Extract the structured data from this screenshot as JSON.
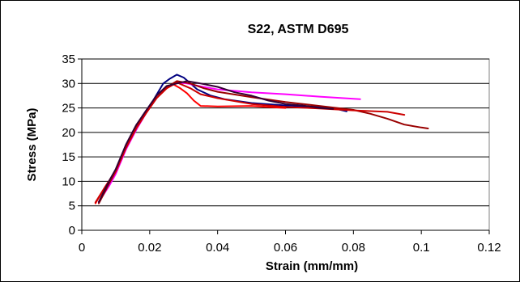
{
  "chart_data": {
    "type": "line",
    "title": "S22, ASTM D695",
    "xlabel": "Strain (mm/mm)",
    "ylabel": "Stress (MPa)",
    "xlim": [
      0,
      0.12
    ],
    "ylim": [
      0,
      35
    ],
    "x_ticks": [
      "0",
      "0.02",
      "0.04",
      "0.06",
      "0.08",
      "0.1",
      "0.12"
    ],
    "y_ticks": [
      "0",
      "5",
      "10",
      "15",
      "20",
      "25",
      "30",
      "35"
    ],
    "grid": "horizontal",
    "legend": "none",
    "series": [
      {
        "color": "#000080",
        "points": [
          [
            0.005,
            5.6
          ],
          [
            0.008,
            9.5
          ],
          [
            0.01,
            12.0
          ],
          [
            0.013,
            17.0
          ],
          [
            0.016,
            20.5
          ],
          [
            0.018,
            23.5
          ],
          [
            0.021,
            26.5
          ],
          [
            0.024,
            30.0
          ],
          [
            0.026,
            31.0
          ],
          [
            0.028,
            31.8
          ],
          [
            0.03,
            31.2
          ],
          [
            0.034,
            28.8
          ],
          [
            0.038,
            27.5
          ],
          [
            0.042,
            26.8
          ],
          [
            0.05,
            26.0
          ],
          [
            0.06,
            25.5
          ],
          [
            0.07,
            25.2
          ],
          [
            0.075,
            24.8
          ],
          [
            0.078,
            24.3
          ]
        ]
      },
      {
        "color": "#ff0000",
        "points": [
          [
            0.004,
            5.5
          ],
          [
            0.007,
            9.0
          ],
          [
            0.01,
            12.2
          ],
          [
            0.013,
            17.2
          ],
          [
            0.016,
            21.0
          ],
          [
            0.019,
            24.0
          ],
          [
            0.022,
            27.0
          ],
          [
            0.025,
            29.0
          ],
          [
            0.027,
            29.8
          ],
          [
            0.029,
            29.0
          ],
          [
            0.031,
            28.0
          ],
          [
            0.033,
            26.5
          ],
          [
            0.035,
            25.4
          ],
          [
            0.04,
            25.3
          ],
          [
            0.05,
            25.4
          ],
          [
            0.06,
            25.0
          ]
        ]
      },
      {
        "color": "#ff00ff",
        "points": [
          [
            0.005,
            5.8
          ],
          [
            0.008,
            9.0
          ],
          [
            0.01,
            11.5
          ],
          [
            0.013,
            16.5
          ],
          [
            0.016,
            20.5
          ],
          [
            0.019,
            24.0
          ],
          [
            0.022,
            27.0
          ],
          [
            0.025,
            29.2
          ],
          [
            0.028,
            30.2
          ],
          [
            0.031,
            30.0
          ],
          [
            0.035,
            29.4
          ],
          [
            0.04,
            28.8
          ],
          [
            0.05,
            28.2
          ],
          [
            0.06,
            27.8
          ],
          [
            0.07,
            27.3
          ],
          [
            0.082,
            26.8
          ]
        ]
      },
      {
        "color": "#990000",
        "points": [
          [
            0.005,
            5.5
          ],
          [
            0.008,
            9.5
          ],
          [
            0.01,
            12.0
          ],
          [
            0.013,
            17.0
          ],
          [
            0.016,
            21.0
          ],
          [
            0.019,
            24.0
          ],
          [
            0.022,
            27.0
          ],
          [
            0.025,
            29.2
          ],
          [
            0.028,
            30.5
          ],
          [
            0.032,
            30.0
          ],
          [
            0.036,
            29.0
          ],
          [
            0.04,
            28.3
          ],
          [
            0.05,
            27.2
          ],
          [
            0.06,
            26.2
          ],
          [
            0.07,
            25.4
          ],
          [
            0.08,
            24.6
          ],
          [
            0.085,
            23.8
          ],
          [
            0.09,
            22.8
          ],
          [
            0.095,
            21.6
          ],
          [
            0.1,
            21.0
          ],
          [
            0.102,
            20.8
          ]
        ]
      },
      {
        "color": "#cc0000",
        "points": [
          [
            0.004,
            5.7
          ],
          [
            0.007,
            9.0
          ],
          [
            0.01,
            12.0
          ],
          [
            0.013,
            16.8
          ],
          [
            0.016,
            20.8
          ],
          [
            0.019,
            24.0
          ],
          [
            0.022,
            27.0
          ],
          [
            0.025,
            29.0
          ],
          [
            0.028,
            30.2
          ],
          [
            0.032,
            29.0
          ],
          [
            0.035,
            27.8
          ],
          [
            0.04,
            27.0
          ],
          [
            0.05,
            25.8
          ],
          [
            0.06,
            25.2
          ],
          [
            0.07,
            24.9
          ],
          [
            0.08,
            24.5
          ],
          [
            0.09,
            24.2
          ],
          [
            0.095,
            23.6
          ]
        ]
      },
      {
        "color": "#330033",
        "points": [
          [
            0.005,
            5.8
          ],
          [
            0.008,
            10.0
          ],
          [
            0.01,
            12.5
          ],
          [
            0.013,
            17.5
          ],
          [
            0.016,
            21.5
          ],
          [
            0.019,
            24.5
          ],
          [
            0.022,
            27.5
          ],
          [
            0.025,
            29.5
          ],
          [
            0.028,
            30.0
          ],
          [
            0.031,
            30.5
          ],
          [
            0.035,
            30.0
          ],
          [
            0.04,
            29.3
          ],
          [
            0.045,
            28.2
          ],
          [
            0.05,
            27.5
          ],
          [
            0.055,
            26.5
          ],
          [
            0.06,
            25.8
          ],
          [
            0.065,
            25.5
          ],
          [
            0.07,
            25.0
          ],
          [
            0.074,
            24.8
          ]
        ]
      }
    ]
  }
}
